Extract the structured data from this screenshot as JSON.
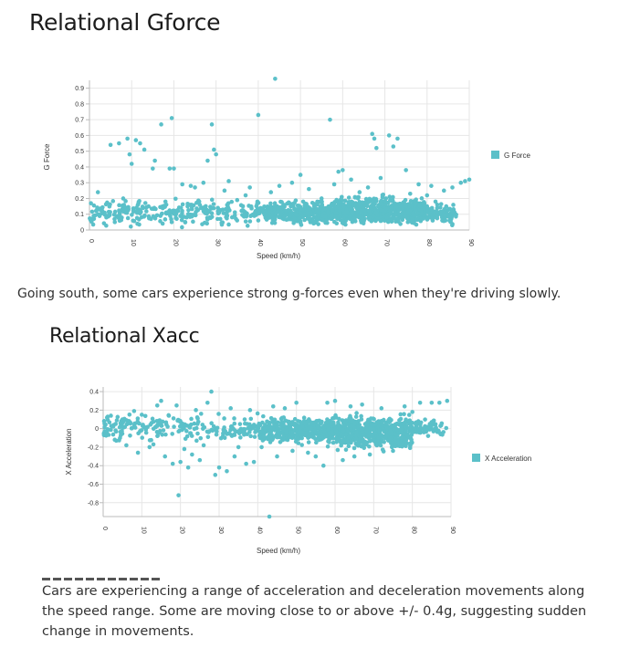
{
  "section1": {
    "title": "Relational Gforce",
    "caption": "Going south, some cars experience strong g-forces even when they're driving slowly."
  },
  "section2": {
    "title": "Relational Xacc",
    "caption": "Cars are experiencing a range of acceleration and deceleration movements along the speed range. Some are moving close to or above +/- 0.4g, suggesting sudden change in movements."
  },
  "colors": {
    "series": "#5bc0c9",
    "grid": "#e6e6e6"
  },
  "chart_data": [
    {
      "type": "scatter",
      "xlabel": "Speed (km/h)",
      "ylabel": "G Force",
      "legend": "G Force",
      "legend_position": "right",
      "grid": true,
      "xlim": [
        0,
        90
      ],
      "ylim": [
        0,
        0.95
      ],
      "x_ticks": [
        "0",
        "10",
        "20",
        "30",
        "40",
        "50",
        "60",
        "70",
        "80",
        "90"
      ],
      "y_ticks": [
        "0",
        "0.1",
        "0.2",
        "0.3",
        "0.4",
        "0.5",
        "0.6",
        "0.7",
        "0.8",
        "0.9"
      ],
      "x_tick_values": [
        0,
        10,
        20,
        30,
        40,
        50,
        60,
        70,
        80,
        90
      ],
      "y_tick_values": [
        0,
        0.1,
        0.2,
        0.3,
        0.4,
        0.5,
        0.6,
        0.7,
        0.8,
        0.9
      ],
      "points": [
        [
          1,
          0.09
        ],
        [
          2,
          0.24
        ],
        [
          3,
          0.12
        ],
        [
          4,
          0.08
        ],
        [
          5,
          0.54
        ],
        [
          6,
          0.05
        ],
        [
          7,
          0.55
        ],
        [
          8,
          0.2
        ],
        [
          9,
          0.58
        ],
        [
          9.5,
          0.48
        ],
        [
          10,
          0.42
        ],
        [
          11,
          0.57
        ],
        [
          12,
          0.55
        ],
        [
          13,
          0.51
        ],
        [
          14,
          0.15
        ],
        [
          15,
          0.39
        ],
        [
          15.5,
          0.44
        ],
        [
          17,
          0.67
        ],
        [
          18,
          0.18
        ],
        [
          19,
          0.39
        ],
        [
          19.5,
          0.71
        ],
        [
          20,
          0.39
        ],
        [
          21,
          0.12
        ],
        [
          22,
          0.29
        ],
        [
          23,
          0.08
        ],
        [
          24,
          0.28
        ],
        [
          25,
          0.27
        ],
        [
          26,
          0.18
        ],
        [
          27,
          0.3
        ],
        [
          28,
          0.44
        ],
        [
          29,
          0.67
        ],
        [
          29.5,
          0.51
        ],
        [
          30,
          0.48
        ],
        [
          31,
          0.07
        ],
        [
          32,
          0.25
        ],
        [
          33,
          0.31
        ],
        [
          35,
          0.19
        ],
        [
          37,
          0.22
        ],
        [
          38,
          0.27
        ],
        [
          40,
          0.73
        ],
        [
          41,
          0.12
        ],
        [
          43,
          0.24
        ],
        [
          44,
          0.96
        ],
        [
          45,
          0.28
        ],
        [
          46,
          0.16
        ],
        [
          48,
          0.3
        ],
        [
          50,
          0.35
        ],
        [
          52,
          0.26
        ],
        [
          54,
          0.18
        ],
        [
          55,
          0.2
        ],
        [
          57,
          0.7
        ],
        [
          58,
          0.29
        ],
        [
          59,
          0.37
        ],
        [
          60,
          0.38
        ],
        [
          62,
          0.32
        ],
        [
          64,
          0.24
        ],
        [
          66,
          0.27
        ],
        [
          67,
          0.61
        ],
        [
          67.5,
          0.58
        ],
        [
          68,
          0.52
        ],
        [
          69,
          0.33
        ],
        [
          71,
          0.6
        ],
        [
          72,
          0.53
        ],
        [
          73,
          0.58
        ],
        [
          75,
          0.38
        ],
        [
          76,
          0.23
        ],
        [
          78,
          0.29
        ],
        [
          80,
          0.22
        ],
        [
          81,
          0.28
        ],
        [
          82,
          0.18
        ],
        [
          84,
          0.25
        ],
        [
          86,
          0.27
        ],
        [
          88,
          0.3
        ],
        [
          89,
          0.31
        ],
        [
          90,
          0.32
        ]
      ],
      "dense_bands": [
        {
          "x": [
            0,
            41
          ],
          "y": [
            0.0,
            0.22
          ],
          "count": 280
        },
        {
          "x": [
            41,
            58
          ],
          "y": [
            0.02,
            0.2
          ],
          "count": 360
        },
        {
          "x": [
            58,
            80
          ],
          "y": [
            0.0,
            0.24
          ],
          "count": 620
        },
        {
          "x": [
            80,
            87
          ],
          "y": [
            0.02,
            0.18
          ],
          "count": 90
        }
      ]
    },
    {
      "type": "scatter",
      "xlabel": "Speed (km/h)",
      "ylabel": "X Acceleration",
      "legend": "X Acceleration",
      "legend_position": "right",
      "grid": true,
      "xlim": [
        0,
        90
      ],
      "ylim": [
        -0.95,
        0.45
      ],
      "x_ticks": [
        "0",
        "10",
        "20",
        "30",
        "40",
        "50",
        "60",
        "70",
        "80",
        "90"
      ],
      "y_ticks": [
        "0.4",
        "0.2",
        "0",
        "-0.2",
        "-0.4",
        "-0.6",
        "-0.8"
      ],
      "x_tick_values": [
        0,
        10,
        20,
        30,
        40,
        50,
        60,
        70,
        80,
        90
      ],
      "y_tick_values": [
        0.4,
        0.2,
        0,
        -0.2,
        -0.4,
        -0.6,
        -0.8
      ],
      "points": [
        [
          1,
          0.12
        ],
        [
          2,
          0.14
        ],
        [
          3,
          -0.12
        ],
        [
          5,
          0.1
        ],
        [
          6,
          -0.18
        ],
        [
          8,
          0.19
        ],
        [
          9,
          -0.26
        ],
        [
          10,
          0.15
        ],
        [
          12,
          -0.2
        ],
        [
          13,
          -0.17
        ],
        [
          14,
          0.25
        ],
        [
          15,
          0.3
        ],
        [
          16,
          -0.3
        ],
        [
          17,
          0.14
        ],
        [
          18,
          -0.38
        ],
        [
          19,
          0.25
        ],
        [
          20,
          -0.36
        ],
        [
          21,
          -0.22
        ],
        [
          22,
          -0.42
        ],
        [
          23,
          -0.28
        ],
        [
          24,
          0.2
        ],
        [
          25,
          -0.34
        ],
        [
          26,
          -0.18
        ],
        [
          27,
          0.28
        ],
        [
          28,
          0.4
        ],
        [
          29,
          -0.5
        ],
        [
          30,
          -0.42
        ],
        [
          31,
          -0.08
        ],
        [
          32,
          -0.46
        ],
        [
          33,
          0.22
        ],
        [
          34,
          -0.3
        ],
        [
          35,
          -0.2
        ],
        [
          37,
          -0.38
        ],
        [
          38,
          0.2
        ],
        [
          39,
          -0.36
        ],
        [
          41,
          -0.2
        ],
        [
          44,
          0.24
        ],
        [
          45,
          -0.3
        ],
        [
          47,
          0.22
        ],
        [
          49,
          -0.24
        ],
        [
          50,
          0.28
        ],
        [
          53,
          -0.26
        ],
        [
          55,
          -0.3
        ],
        [
          57,
          -0.4
        ],
        [
          58,
          0.28
        ],
        [
          60,
          0.3
        ],
        [
          62,
          -0.34
        ],
        [
          64,
          0.24
        ],
        [
          65,
          -0.3
        ],
        [
          67,
          0.26
        ],
        [
          69,
          -0.28
        ],
        [
          72,
          0.22
        ],
        [
          75,
          -0.24
        ],
        [
          78,
          0.24
        ],
        [
          80,
          0.18
        ],
        [
          82,
          0.28
        ],
        [
          85,
          0.28
        ],
        [
          87,
          0.28
        ],
        [
          89,
          0.3
        ],
        [
          19.5,
          -0.72
        ],
        [
          43,
          -0.95
        ]
      ],
      "dense_bands": [
        {
          "x": [
            0,
            41
          ],
          "y": [
            -0.18,
            0.2
          ],
          "count": 230
        },
        {
          "x": [
            41,
            58
          ],
          "y": [
            -0.2,
            0.17
          ],
          "count": 320
        },
        {
          "x": [
            58,
            80
          ],
          "y": [
            -0.28,
            0.2
          ],
          "count": 600
        },
        {
          "x": [
            80,
            89
          ],
          "y": [
            -0.1,
            0.12
          ],
          "count": 70
        }
      ]
    }
  ]
}
